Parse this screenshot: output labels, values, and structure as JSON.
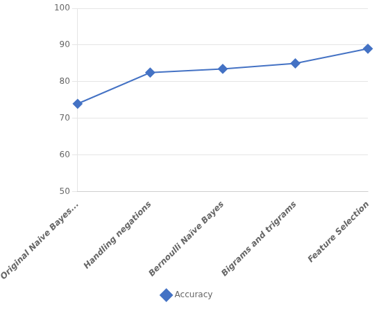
{
  "chart_data": {
    "type": "line",
    "categories": [
      "Original Naive Bayes...",
      "Handling negations",
      "Bernoulli Naïve Bayes",
      "Bigrams and trigrams",
      "Feature Selection"
    ],
    "series": [
      {
        "name": "Accuracy",
        "color": "#4472C4",
        "values": [
          74,
          82.5,
          83.5,
          85,
          89
        ]
      }
    ],
    "marker": "diamond",
    "ylim": [
      50,
      100
    ],
    "yticks": [
      50,
      60,
      70,
      80,
      90,
      100
    ],
    "grid": true,
    "legend": "bottom"
  }
}
